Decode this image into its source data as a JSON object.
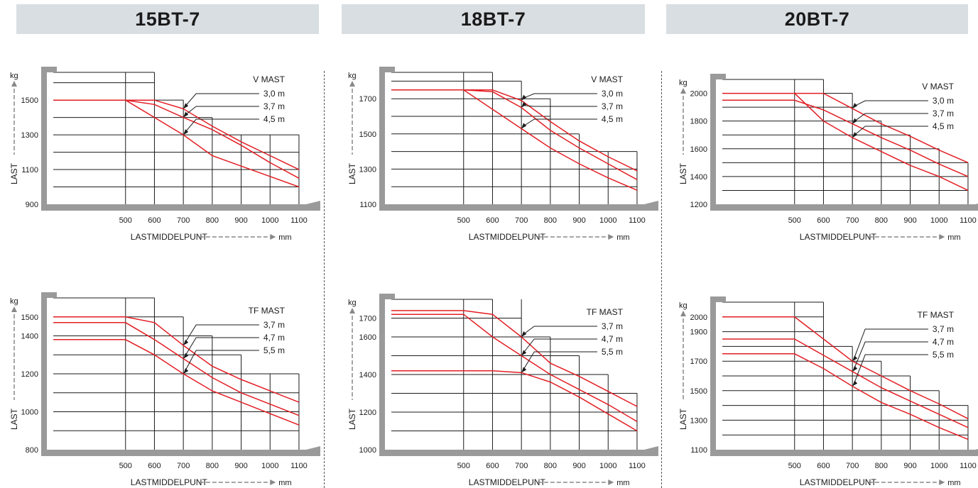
{
  "headers": [
    "15BT-7",
    "18BT-7",
    "20BT-7"
  ],
  "colors": {
    "curve": "#e31e24",
    "frame": "#9a9a9a",
    "grid": "#1a1a1a",
    "header_bg": "#d9dee2"
  },
  "chart_data": [
    {
      "type": "line",
      "model": "15BT-7",
      "legend_title": "V MAST",
      "ylabel": "LAST",
      "y_unit": "kg",
      "xlabel": "LASTMIDDELPUNT",
      "x_unit": "mm",
      "x_ticks": [
        500,
        600,
        700,
        800,
        900,
        1000,
        1100
      ],
      "y_ticks": [
        900,
        1100,
        1300,
        1500
      ],
      "ylim": [
        900,
        1660
      ],
      "xlim": [
        250,
        1100
      ],
      "steps": [
        {
          "x": 500,
          "y": 1660
        },
        {
          "x": 600,
          "y": 1660
        },
        {
          "x": 700,
          "y": 1500
        },
        {
          "x": 800,
          "y": 1400
        },
        {
          "x": 1100,
          "y": 1300
        },
        {
          "x": 1100,
          "y": 1200
        },
        {
          "x": 1100,
          "y": 1100
        },
        {
          "x": 1100,
          "y": 1000
        }
      ],
      "series": [
        {
          "name": "3,0 m",
          "x": [
            250,
            500,
            600,
            700,
            800,
            900,
            1000,
            1100
          ],
          "y": [
            1500,
            1500,
            1500,
            1450,
            1350,
            1260,
            1180,
            1100
          ]
        },
        {
          "name": "3,7 m",
          "x": [
            500,
            600,
            700,
            800,
            900,
            1000,
            1100
          ],
          "y": [
            1500,
            1475,
            1400,
            1330,
            1240,
            1140,
            1050
          ]
        },
        {
          "name": "4,5 m",
          "x": [
            500,
            600,
            700,
            800,
            900,
            1000,
            1100
          ],
          "y": [
            1500,
            1400,
            1300,
            1180,
            1120,
            1060,
            1000
          ]
        }
      ]
    },
    {
      "type": "line",
      "model": "18BT-7",
      "legend_title": "V MAST",
      "ylabel": "LAST",
      "y_unit": "kg",
      "xlabel": "LASTMIDDELPUNT",
      "x_unit": "mm",
      "x_ticks": [
        500,
        600,
        700,
        800,
        900,
        1000,
        1100
      ],
      "y_ticks": [
        1100,
        1300,
        1500,
        1700
      ],
      "ylim": [
        1100,
        1850
      ],
      "xlim": [
        250,
        1100
      ],
      "steps": [
        {
          "x": 500,
          "y": 1850
        },
        {
          "x": 600,
          "y": 1850
        },
        {
          "x": 700,
          "y": 1800
        },
        {
          "x": 800,
          "y": 1700
        },
        {
          "x": 900,
          "y": 1500
        },
        {
          "x": 1100,
          "y": 1400
        },
        {
          "x": 1100,
          "y": 1300
        },
        {
          "x": 1100,
          "y": 1200
        }
      ],
      "series": [
        {
          "name": "3,0 m",
          "x": [
            250,
            500,
            600,
            700,
            800,
            900,
            1000,
            1100
          ],
          "y": [
            1750,
            1750,
            1750,
            1690,
            1570,
            1460,
            1370,
            1290
          ]
        },
        {
          "name": "3,7 m",
          "x": [
            500,
            600,
            700,
            800,
            900,
            1000,
            1100
          ],
          "y": [
            1750,
            1740,
            1650,
            1520,
            1420,
            1330,
            1240
          ]
        },
        {
          "name": "4,5 m",
          "x": [
            500,
            600,
            700,
            800,
            900,
            1000,
            1100
          ],
          "y": [
            1750,
            1640,
            1530,
            1420,
            1330,
            1250,
            1180
          ]
        }
      ]
    },
    {
      "type": "line",
      "model": "20BT-7",
      "legend_title": "V MAST",
      "ylabel": "LAST",
      "y_unit": "kg",
      "xlabel": "LASTMIDDELPUNT",
      "x_unit": "mm",
      "x_ticks": [
        500,
        600,
        700,
        800,
        900,
        1000,
        1100
      ],
      "y_ticks": [
        1200,
        1400,
        1600,
        1800,
        2000
      ],
      "ylim": [
        1200,
        2100
      ],
      "xlim": [
        250,
        1100
      ],
      "steps": [
        {
          "x": 500,
          "y": 2100
        },
        {
          "x": 600,
          "y": 2100
        },
        {
          "x": 700,
          "y": 2000
        },
        {
          "x": 800,
          "y": 1800
        },
        {
          "x": 900,
          "y": 1700
        },
        {
          "x": 1000,
          "y": 1600
        },
        {
          "x": 1100,
          "y": 1500
        },
        {
          "x": 1100,
          "y": 1400
        },
        {
          "x": 1100,
          "y": 1300
        }
      ],
      "series": [
        {
          "name": "3,0 m",
          "x": [
            250,
            500,
            600,
            700,
            800,
            900,
            1000,
            1100
          ],
          "y": [
            2000,
            2000,
            2000,
            1890,
            1780,
            1690,
            1590,
            1500
          ]
        },
        {
          "name": "3,7 m",
          "x": [
            250,
            500,
            600,
            700,
            800,
            900,
            1000,
            1100
          ],
          "y": [
            1950,
            1950,
            1880,
            1780,
            1680,
            1590,
            1490,
            1400
          ]
        },
        {
          "name": "4,5 m",
          "x": [
            500,
            600,
            700,
            800,
            900,
            1000,
            1100
          ],
          "y": [
            2000,
            1800,
            1680,
            1580,
            1480,
            1400,
            1300
          ]
        }
      ]
    },
    {
      "type": "line",
      "model": "15BT-7",
      "legend_title": "TF MAST",
      "ylabel": "LAST",
      "y_unit": "kg",
      "xlabel": "LASTMIDDELPUNT",
      "x_unit": "mm",
      "x_ticks": [
        500,
        600,
        700,
        800,
        900,
        1000,
        1100
      ],
      "y_ticks": [
        800,
        1000,
        1200,
        1400,
        1500
      ],
      "ylim": [
        800,
        1600
      ],
      "xlim": [
        250,
        1100
      ],
      "steps": [
        {
          "x": 500,
          "y": 1600
        },
        {
          "x": 600,
          "y": 1600
        },
        {
          "x": 700,
          "y": 1500
        },
        {
          "x": 800,
          "y": 1400
        },
        {
          "x": 900,
          "y": 1300
        },
        {
          "x": 1100,
          "y": 1200
        },
        {
          "x": 1100,
          "y": 1100
        },
        {
          "x": 1100,
          "y": 1000
        },
        {
          "x": 1100,
          "y": 900
        }
      ],
      "series": [
        {
          "name": "3,7 m",
          "x": [
            250,
            500,
            600,
            700,
            800,
            900,
            1000,
            1100
          ],
          "y": [
            1500,
            1500,
            1470,
            1350,
            1240,
            1170,
            1110,
            1050
          ]
        },
        {
          "name": "4,7 m",
          "x": [
            250,
            500,
            600,
            700,
            800,
            900,
            1000,
            1100
          ],
          "y": [
            1470,
            1470,
            1380,
            1280,
            1180,
            1100,
            1040,
            980
          ]
        },
        {
          "name": "5,5 m",
          "x": [
            250,
            500,
            600,
            700,
            800,
            900,
            1000,
            1100
          ],
          "y": [
            1380,
            1380,
            1300,
            1200,
            1110,
            1050,
            990,
            930
          ]
        }
      ]
    },
    {
      "type": "line",
      "model": "18BT-7",
      "legend_title": "TF MAST",
      "ylabel": "LAST",
      "y_unit": "kg",
      "xlabel": "LASTMIDDELPUNT",
      "x_unit": "mm",
      "x_ticks": [
        500,
        600,
        700,
        800,
        900,
        1000,
        1100
      ],
      "y_ticks": [
        1000,
        1200,
        1400,
        1600,
        1700
      ],
      "ylim": [
        1000,
        1800
      ],
      "xlim": [
        250,
        1100
      ],
      "steps": [
        {
          "x": 500,
          "y": 1800
        },
        {
          "x": 600,
          "y": 1800
        },
        {
          "x": 700,
          "y": 1800
        },
        {
          "x": 800,
          "y": 1600
        },
        {
          "x": 900,
          "y": 1500
        },
        {
          "x": 1000,
          "y": 1400
        },
        {
          "x": 1100,
          "y": 1300
        },
        {
          "x": 1100,
          "y": 1200
        },
        {
          "x": 1100,
          "y": 1100
        }
      ],
      "series": [
        {
          "name": "3,7 m",
          "x": [
            250,
            500,
            600,
            700,
            800,
            900,
            1000,
            1100
          ],
          "y": [
            1740,
            1740,
            1720,
            1600,
            1460,
            1390,
            1310,
            1230
          ]
        },
        {
          "name": "4,7 m",
          "x": [
            250,
            500,
            600,
            700,
            800,
            900,
            1000,
            1100
          ],
          "y": [
            1720,
            1720,
            1600,
            1500,
            1400,
            1320,
            1240,
            1150
          ]
        },
        {
          "name": "5,5 m",
          "x": [
            250,
            500,
            600,
            700,
            800,
            900,
            1000,
            1100
          ],
          "y": [
            1420,
            1420,
            1420,
            1410,
            1360,
            1280,
            1190,
            1100
          ]
        }
      ]
    },
    {
      "type": "line",
      "model": "20BT-7",
      "legend_title": "TF MAST",
      "ylabel": "LAST",
      "y_unit": "kg",
      "xlabel": "LASTMIDDELPUNT",
      "x_unit": "mm",
      "x_ticks": [
        500,
        600,
        700,
        800,
        900,
        1000,
        1100
      ],
      "y_ticks": [
        1100,
        1300,
        1500,
        1700,
        1900,
        2000
      ],
      "ylim": [
        1100,
        2100
      ],
      "xlim": [
        250,
        1100
      ],
      "steps": [
        {
          "x": 500,
          "y": 2100
        },
        {
          "x": 600,
          "y": 2100
        },
        {
          "x": 700,
          "y": 1800
        },
        {
          "x": 800,
          "y": 1700
        },
        {
          "x": 900,
          "y": 1600
        },
        {
          "x": 1000,
          "y": 1500
        },
        {
          "x": 1100,
          "y": 1400
        },
        {
          "x": 1100,
          "y": 1300
        },
        {
          "x": 1100,
          "y": 1200
        },
        {
          "x": 500,
          "y": 2000
        },
        {
          "x": 500,
          "y": 1900
        }
      ],
      "series": [
        {
          "name": "3,7 m",
          "x": [
            250,
            500,
            600,
            700,
            800,
            900,
            1000,
            1100
          ],
          "y": [
            2000,
            2000,
            1850,
            1700,
            1600,
            1500,
            1410,
            1310
          ]
        },
        {
          "name": "4,7 m",
          "x": [
            250,
            500,
            600,
            700,
            800,
            900,
            1000,
            1100
          ],
          "y": [
            1850,
            1850,
            1740,
            1630,
            1520,
            1430,
            1340,
            1250
          ]
        },
        {
          "name": "5,5 m",
          "x": [
            250,
            500,
            600,
            700,
            800,
            900,
            1000,
            1100
          ],
          "y": [
            1750,
            1750,
            1650,
            1530,
            1420,
            1340,
            1250,
            1170
          ]
        }
      ]
    }
  ]
}
